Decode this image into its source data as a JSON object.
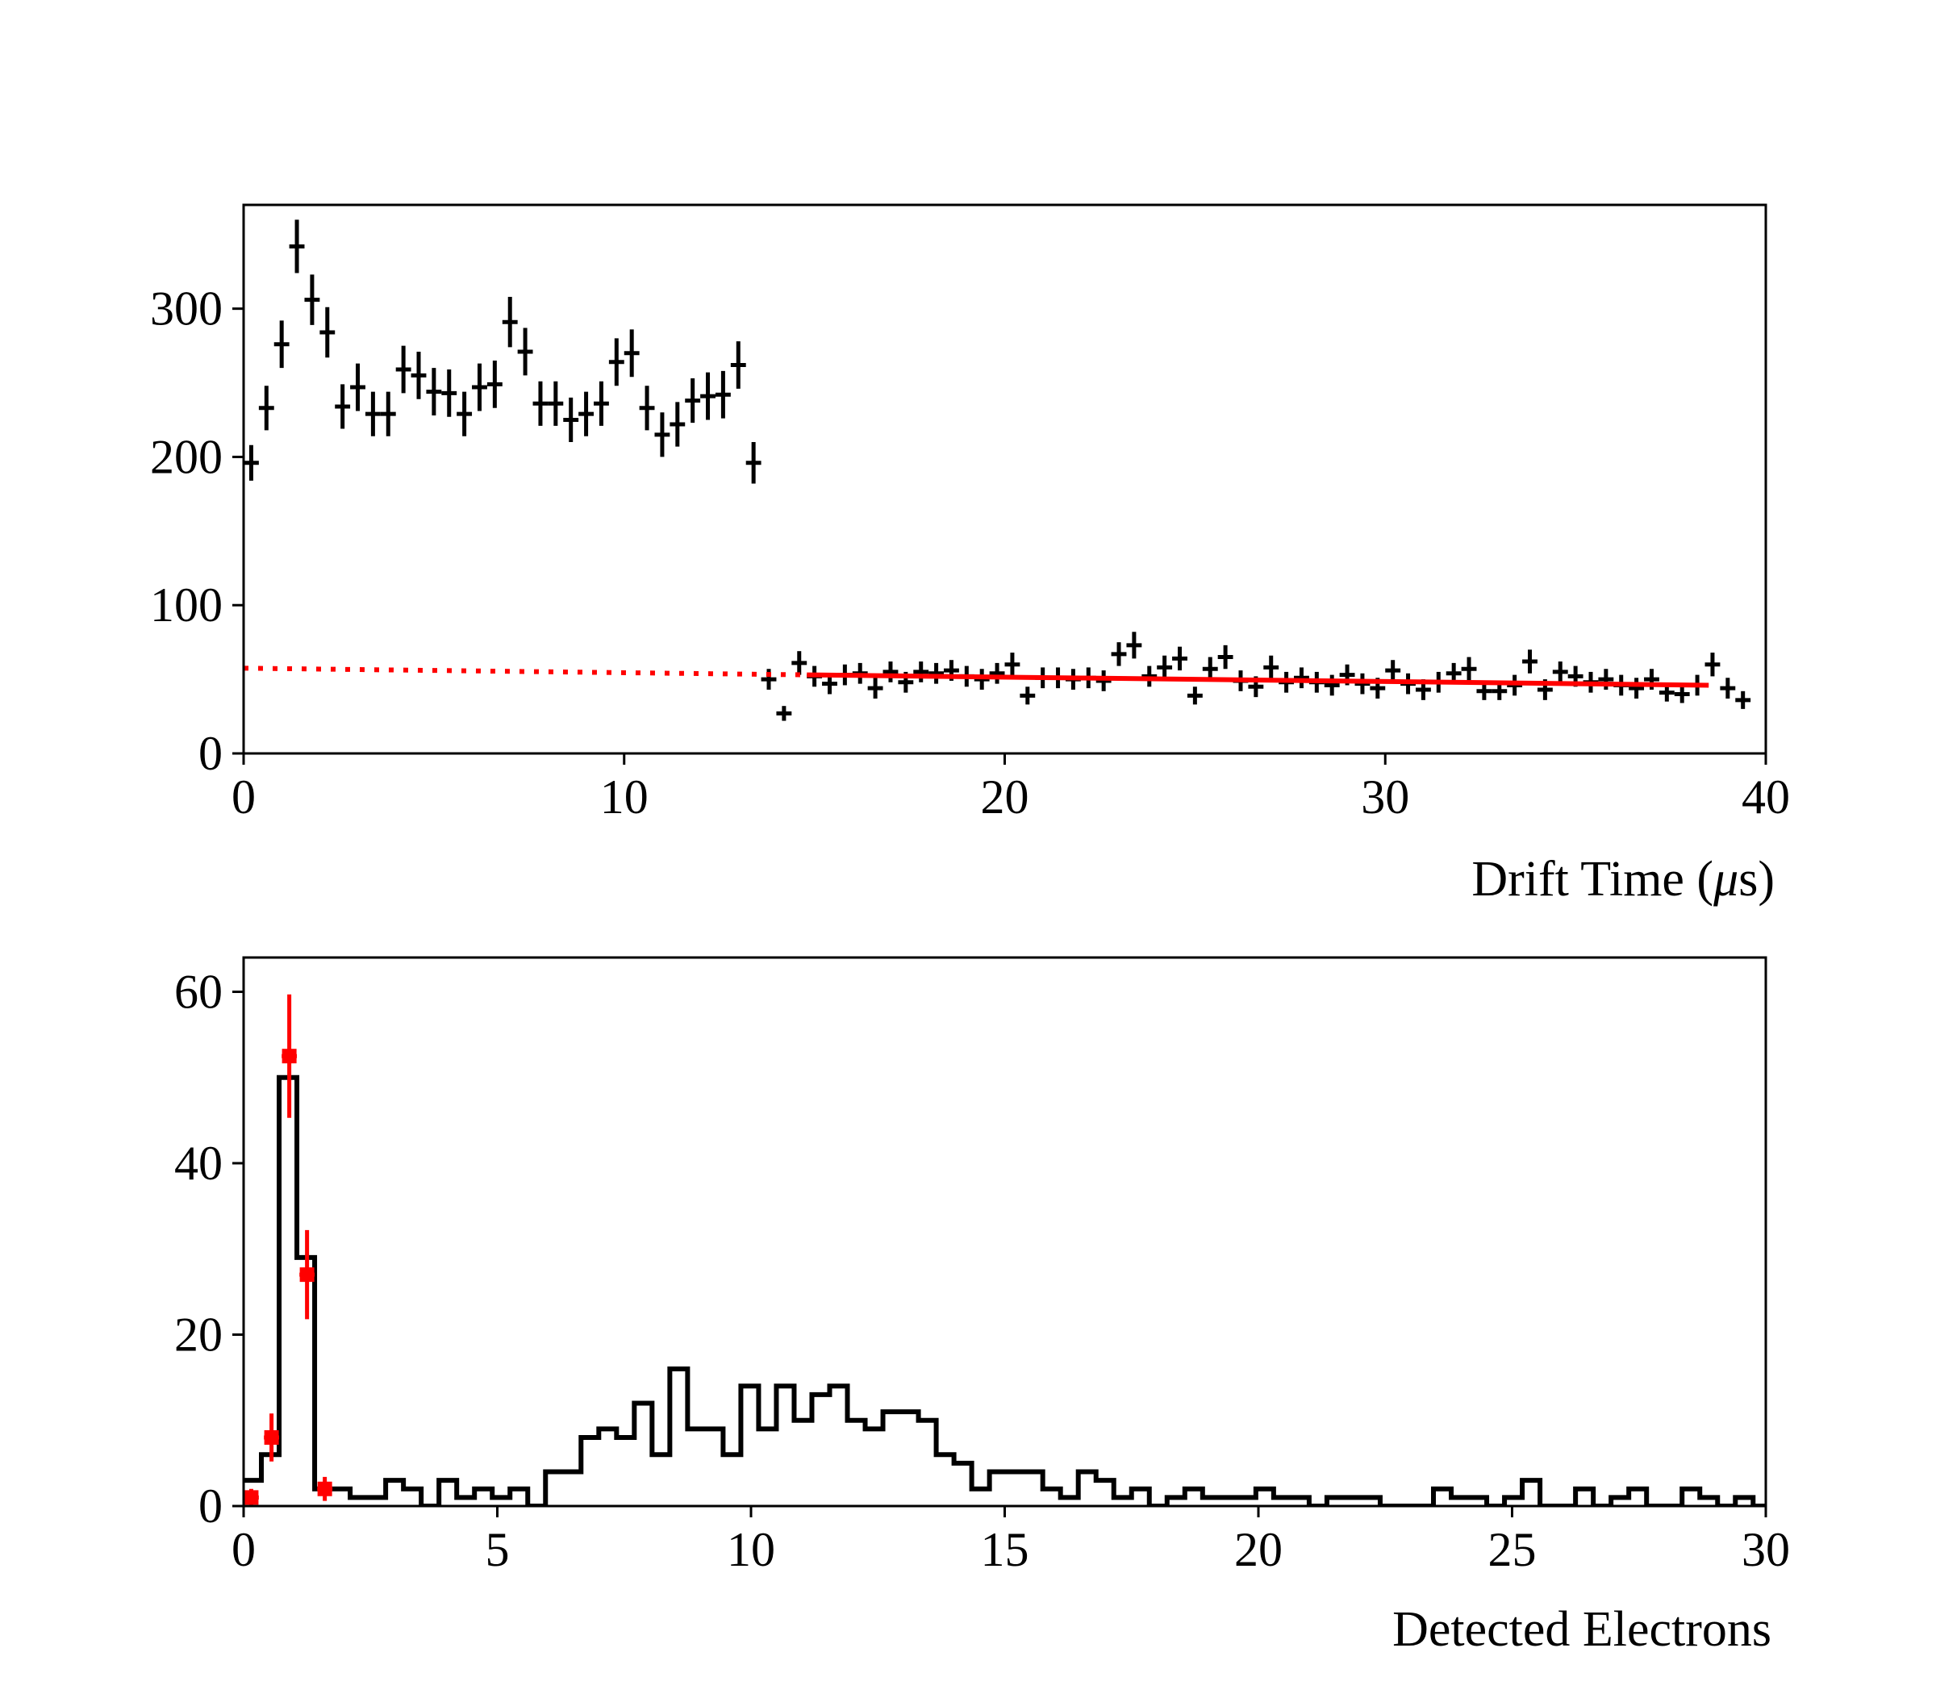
{
  "chart_data": [
    {
      "type": "scatter",
      "title": "",
      "xlabel": "Drift Time (μs)",
      "xlabel_parts": {
        "before": "Drift Time (",
        "symbol": "μ",
        "after": "s)"
      },
      "ylabel": "",
      "xlim": [
        0,
        40
      ],
      "ylim": [
        0,
        370
      ],
      "xticks": [
        0,
        10,
        20,
        30,
        40
      ],
      "yticks": [
        0,
        100,
        200,
        300
      ],
      "x_bin_halfwidth": 0.2,
      "series": [
        {
          "name": "counts",
          "color": "#000000",
          "x": [
            0.2,
            0.6,
            1.0,
            1.4,
            1.8,
            2.2,
            2.6,
            3.0,
            3.4,
            3.8,
            4.2,
            4.6,
            5.0,
            5.4,
            5.8,
            6.2,
            6.6,
            7.0,
            7.4,
            7.8,
            8.2,
            8.6,
            9.0,
            9.4,
            9.8,
            10.2,
            10.6,
            11.0,
            11.4,
            11.8,
            12.2,
            12.6,
            13.0,
            13.4,
            13.8,
            14.2,
            14.6,
            15.0,
            15.4,
            15.8,
            16.2,
            16.6,
            17.0,
            17.4,
            17.8,
            18.2,
            18.6,
            19.0,
            19.4,
            19.8,
            20.2,
            20.6,
            21.0,
            21.4,
            21.8,
            22.2,
            22.6,
            23.0,
            23.4,
            23.8,
            24.2,
            24.6,
            25.0,
            25.4,
            25.8,
            26.2,
            26.6,
            27.0,
            27.4,
            27.8,
            28.2,
            28.6,
            29.0,
            29.4,
            29.8,
            30.2,
            30.6,
            31.0,
            31.4,
            31.8,
            32.2,
            32.6,
            33.0,
            33.4,
            33.8,
            34.2,
            34.6,
            35.0,
            35.4,
            35.8,
            36.2,
            36.6,
            37.0,
            37.4,
            37.8,
            38.2,
            38.6,
            39.0,
            39.4
          ],
          "y": [
            196,
            233,
            276,
            342,
            306,
            284,
            234,
            247,
            229,
            229,
            259,
            255,
            244,
            243,
            229,
            247,
            249,
            291,
            271,
            236,
            236,
            225,
            229,
            236,
            264,
            270,
            233,
            215,
            222,
            238,
            241,
            242,
            262,
            196,
            50,
            27,
            61,
            52,
            47,
            53,
            54,
            44,
            55,
            48,
            55,
            54,
            56,
            52,
            50,
            54,
            60,
            39,
            51,
            51,
            50,
            51,
            49,
            67,
            73,
            52,
            58,
            64,
            39,
            57,
            65,
            49,
            45,
            58,
            48,
            51,
            48,
            46,
            53,
            47,
            44,
            56,
            47,
            43,
            48,
            54,
            57,
            42,
            42,
            46,
            62,
            43,
            55,
            52,
            48,
            50,
            46,
            44,
            50,
            41,
            40,
            46,
            60,
            44,
            36
          ],
          "err": [
            12,
            15,
            16,
            18,
            17,
            17,
            15,
            16,
            15,
            15,
            16,
            16,
            16,
            16,
            15,
            16,
            16,
            17,
            16,
            15,
            15,
            15,
            15,
            15,
            16,
            16,
            15,
            15,
            15,
            15,
            16,
            16,
            16,
            14,
            7,
            5,
            8,
            7,
            7,
            7,
            7,
            7,
            7,
            7,
            7,
            7,
            7,
            7,
            7,
            7,
            8,
            6,
            7,
            7,
            7,
            7,
            7,
            8,
            9,
            7,
            8,
            8,
            6,
            8,
            8,
            7,
            7,
            8,
            7,
            7,
            7,
            7,
            7,
            7,
            7,
            7,
            7,
            7,
            7,
            7,
            8,
            6,
            6,
            7,
            8,
            7,
            7,
            7,
            7,
            7,
            7,
            7,
            7,
            6,
            6,
            7,
            8,
            7,
            6
          ]
        },
        {
          "name": "fit",
          "style": "solid",
          "color": "#ff0000",
          "x": [
            14.8,
            38.5
          ],
          "y": [
            53,
            46
          ]
        },
        {
          "name": "fit extrapolation",
          "style": "dotted",
          "color": "#ff0000",
          "x": [
            0.0,
            14.8
          ],
          "y": [
            57.5,
            53
          ]
        }
      ]
    },
    {
      "type": "histogram",
      "title": "",
      "xlabel": "Detected Electrons",
      "ylabel": "",
      "xlim": [
        0,
        30
      ],
      "ylim": [
        0,
        64
      ],
      "xticks": [
        0,
        5,
        10,
        15,
        20,
        25,
        30
      ],
      "yticks": [
        0,
        20,
        40,
        60
      ],
      "series": [
        {
          "name": "detected electrons histogram",
          "style": "step",
          "color": "#000000",
          "bin_edges": [
            0.0,
            0.35,
            0.7,
            1.05,
            1.4,
            1.75,
            2.1,
            2.45,
            2.8,
            3.15,
            3.5,
            3.85,
            4.2,
            4.55,
            4.9,
            5.25,
            5.6,
            5.95,
            6.3,
            6.65,
            7.0,
            7.35,
            7.7,
            8.05,
            8.4,
            8.75,
            9.1,
            9.45,
            9.8,
            10.15,
            10.5,
            10.85,
            11.2,
            11.55,
            11.9,
            12.25,
            12.6,
            12.95,
            13.3,
            13.65,
            14.0,
            14.35,
            14.7,
            15.05,
            15.4,
            15.75,
            16.1,
            16.45,
            16.8,
            17.15,
            17.5,
            17.85,
            18.2,
            18.55,
            18.9,
            19.25,
            19.6,
            19.95,
            20.3,
            20.65,
            21.0,
            21.35,
            21.7,
            22.05,
            22.4,
            22.75,
            23.1,
            23.45,
            23.8,
            24.15,
            24.5,
            24.85,
            25.2,
            25.55,
            25.9,
            26.25,
            26.6,
            26.95,
            27.3,
            27.65,
            28.0,
            28.35,
            28.7,
            29.05,
            29.4,
            29.75,
            30.0
          ],
          "counts": [
            3,
            6,
            50,
            29,
            2,
            2,
            1,
            1,
            3,
            2,
            0,
            3,
            1,
            2,
            1,
            2,
            0,
            4,
            4,
            8,
            9,
            8,
            12,
            6,
            16,
            9,
            9,
            6,
            14,
            9,
            14,
            10,
            13,
            14,
            10,
            9,
            11,
            11,
            10,
            6,
            5,
            2,
            4,
            4,
            4,
            2,
            1,
            4,
            3,
            1,
            2,
            0,
            1,
            2,
            1,
            1,
            1,
            2,
            1,
            1,
            0,
            1,
            1,
            1,
            0,
            0,
            0,
            2,
            1,
            1,
            0,
            1,
            3,
            0,
            0,
            2,
            0,
            1,
            2,
            0,
            0,
            2,
            1,
            0,
            1,
            0
          ]
        },
        {
          "name": "model points",
          "color": "#ff0000",
          "x": [
            0.15,
            0.55,
            0.9,
            1.25,
            1.6
          ],
          "y": [
            1,
            8,
            52.5,
            27,
            2
          ],
          "err": [
            1,
            2.8,
            7.2,
            5.2,
            1.4
          ],
          "x_bin_halfwidth": 0.15
        }
      ]
    }
  ]
}
